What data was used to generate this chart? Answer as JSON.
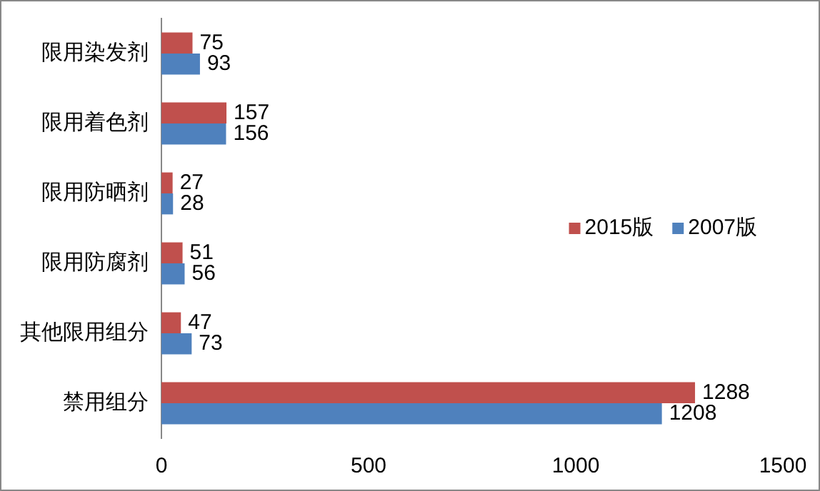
{
  "chart_data": {
    "type": "bar",
    "orientation": "horizontal",
    "categories": [
      "限用染发剂",
      "限用着色剂",
      "限用防晒剂",
      "限用防腐剂",
      "其他限用组分",
      "禁用组分"
    ],
    "series": [
      {
        "name": "2015版",
        "color": "#c0504d",
        "values": [
          75,
          157,
          27,
          51,
          47,
          1288
        ]
      },
      {
        "name": "2007版",
        "color": "#4f81bd",
        "values": [
          93,
          156,
          28,
          56,
          73,
          1208
        ]
      }
    ],
    "xlim": [
      0,
      1500
    ],
    "xticks": [
      0,
      500,
      1000,
      1500
    ],
    "grid": false,
    "legend": "right",
    "data_labels": true
  }
}
